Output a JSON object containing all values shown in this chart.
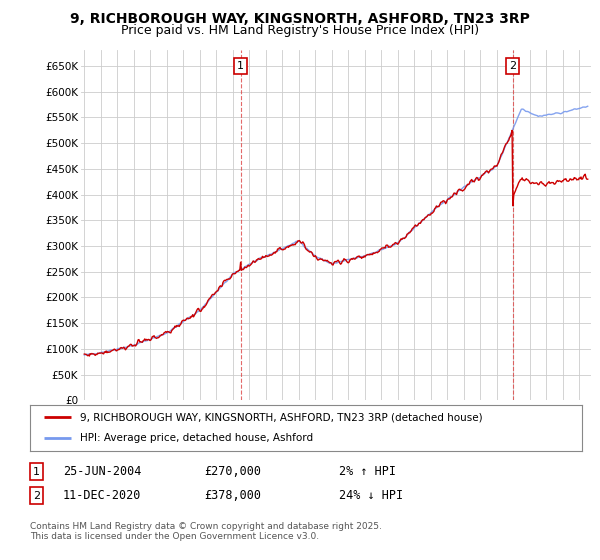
{
  "title": "9, RICHBOROUGH WAY, KINGSNORTH, ASHFORD, TN23 3RP",
  "subtitle": "Price paid vs. HM Land Registry's House Price Index (HPI)",
  "ylim": [
    0,
    680000
  ],
  "yticks": [
    0,
    50000,
    100000,
    150000,
    200000,
    250000,
    300000,
    350000,
    400000,
    450000,
    500000,
    550000,
    600000,
    650000
  ],
  "ytick_labels": [
    "£0",
    "£50K",
    "£100K",
    "£150K",
    "£200K",
    "£250K",
    "£300K",
    "£350K",
    "£400K",
    "£450K",
    "£500K",
    "£550K",
    "£600K",
    "£650K"
  ],
  "xlim_start": 1994.8,
  "xlim_end": 2025.7,
  "background_color": "#ffffff",
  "plot_bg_color": "#ffffff",
  "grid_color": "#cccccc",
  "hpi_line_color": "#7799ee",
  "price_line_color": "#cc0000",
  "dashed_line_color": "#dd4444",
  "marker1_date": 2004.48,
  "marker2_date": 2020.95,
  "marker1_price": 270000,
  "marker2_price": 378000,
  "legend_entry1": "9, RICHBOROUGH WAY, KINGSNORTH, ASHFORD, TN23 3RP (detached house)",
  "legend_entry2": "HPI: Average price, detached house, Ashford",
  "footer_text": "Contains HM Land Registry data © Crown copyright and database right 2025.\nThis data is licensed under the Open Government Licence v3.0.",
  "title_fontsize": 10,
  "subtitle_fontsize": 9
}
